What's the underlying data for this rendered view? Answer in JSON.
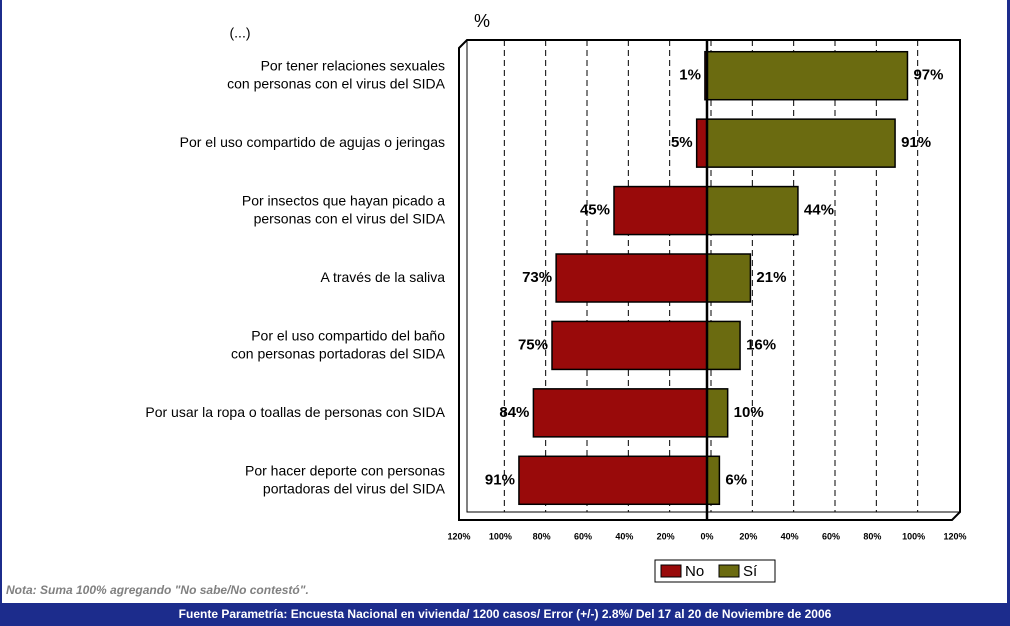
{
  "chart_data": {
    "type": "diverging-bar",
    "title": "%",
    "subtitle": "(...)",
    "categories": [
      "Por tener relaciones sexuales\ncon personas con el virus del SIDA",
      "Por el uso compartido de agujas o jeringas",
      "Por insectos que hayan picado a\npersonas con el virus del SIDA",
      "A través de la saliva",
      "Por el uso compartido del baño\ncon personas portadoras del SIDA",
      "Por usar la ropa o toallas de personas con SIDA",
      "Por hacer deporte con personas\nportadoras del virus del SIDA"
    ],
    "series": [
      {
        "name": "No",
        "color": "#990a0a",
        "values": [
          -1,
          -5,
          -45,
          -73,
          -75,
          -84,
          -91
        ],
        "value_labels": [
          "1%",
          "5%",
          "45%",
          "73%",
          "75%",
          "84%",
          "91%"
        ]
      },
      {
        "name": "Sí",
        "color": "#6b6b10",
        "values": [
          97,
          91,
          44,
          21,
          16,
          10,
          6
        ],
        "value_labels": [
          "97%",
          "91%",
          "44%",
          "21%",
          "16%",
          "10%",
          "6%"
        ]
      }
    ],
    "xlim": [
      -120,
      120
    ],
    "xticks": [
      {
        "value": -120,
        "label": "120%"
      },
      {
        "value": -100,
        "label": "100%"
      },
      {
        "value": -80,
        "label": "80%"
      },
      {
        "value": -60,
        "label": "60%"
      },
      {
        "value": -40,
        "label": "40%"
      },
      {
        "value": -20,
        "label": "20%"
      },
      {
        "value": 0,
        "label": "0%"
      },
      {
        "value": 20,
        "label": "20%"
      },
      {
        "value": 40,
        "label": "40%"
      },
      {
        "value": 60,
        "label": "60%"
      },
      {
        "value": 80,
        "label": "80%"
      },
      {
        "value": 100,
        "label": "100%"
      },
      {
        "value": 120,
        "label": "120%"
      }
    ],
    "grid": true,
    "legend": "bottom",
    "note": "Nota: Suma 100% agregando  \"No sabe/No contestó\".",
    "source": "Fuente Parametría: Encuesta Nacional en vivienda/ 1200 casos/ Error (+/-) 2.8%/  Del 17 al 20 de Noviembre de 2006"
  }
}
